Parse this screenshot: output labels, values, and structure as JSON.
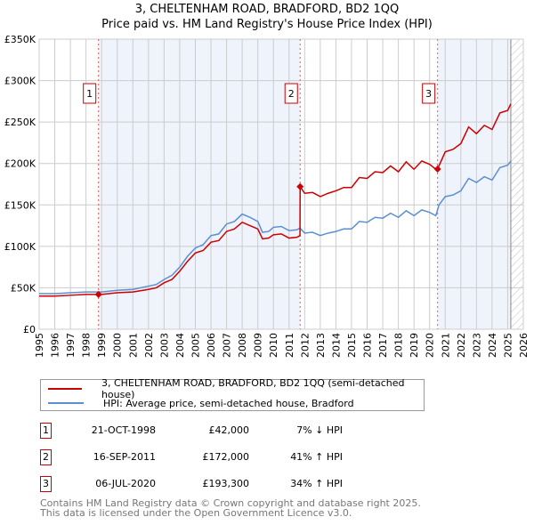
{
  "chart_data": {
    "type": "line",
    "title": "3, CHELTENHAM ROAD, BRADFORD, BD2 1QQ",
    "subtitle": "Price paid vs. HM Land Registry's House Price Index (HPI)",
    "xlim": [
      1995,
      2026
    ],
    "ylim": [
      0,
      350000
    ],
    "x_ticks": [
      "1995",
      "1996",
      "1997",
      "1998",
      "1999",
      "2000",
      "2001",
      "2002",
      "2003",
      "2004",
      "2005",
      "2006",
      "2007",
      "2008",
      "2009",
      "2010",
      "2011",
      "2012",
      "2013",
      "2014",
      "2015",
      "2016",
      "2017",
      "2018",
      "2019",
      "2020",
      "2021",
      "2022",
      "2023",
      "2024",
      "2025",
      "2026"
    ],
    "y_ticks": [
      {
        "v": 0,
        "label": "£0"
      },
      {
        "v": 50000,
        "label": "£50K"
      },
      {
        "v": 100000,
        "label": "£100K"
      },
      {
        "v": 150000,
        "label": "£150K"
      },
      {
        "v": 200000,
        "label": "£200K"
      },
      {
        "v": 250000,
        "label": "£250K"
      },
      {
        "v": 300000,
        "label": "£300K"
      },
      {
        "v": 350000,
        "label": "£350K"
      }
    ],
    "grid": true,
    "shaded_ranges": [
      [
        1998.8,
        2011.71
      ],
      [
        2020.51,
        2025.2
      ]
    ],
    "hatched_from": 2025.2,
    "series": [
      {
        "name": "3, CHELTENHAM ROAD, BRADFORD, BD2 1QQ (semi-detached house)",
        "color": "#cc0000",
        "x": [
          1995,
          1996,
          1997,
          1998,
          1998.8,
          1999,
          2000,
          2001,
          2002,
          2002.5,
          2003,
          2003.5,
          2004,
          2004.5,
          2005,
          2005.5,
          2006,
          2006.5,
          2007,
          2007.5,
          2008,
          2008.5,
          2009,
          2009.3,
          2009.7,
          2010,
          2010.5,
          2011,
          2011.5,
          2011.7,
          2011.71,
          2012,
          2012.5,
          2013,
          2013.5,
          2014,
          2014.5,
          2015,
          2015.5,
          2016,
          2016.5,
          2017,
          2017.5,
          2018,
          2018.5,
          2019,
          2019.5,
          2020,
          2020.4,
          2020.51,
          2021,
          2021.5,
          2022,
          2022.5,
          2023,
          2023.5,
          2024,
          2024.5,
          2025,
          2025.2
        ],
        "y": [
          40000,
          40000,
          41000,
          42000,
          42000,
          42000,
          44000,
          45000,
          48000,
          50000,
          56000,
          60000,
          70000,
          82000,
          92000,
          95000,
          105000,
          107000,
          118000,
          121000,
          129000,
          125000,
          121000,
          109000,
          110000,
          114000,
          115000,
          110000,
          111000,
          113000,
          172000,
          164000,
          165000,
          160000,
          164000,
          167000,
          171000,
          171000,
          183000,
          182000,
          190000,
          189000,
          197000,
          190000,
          202000,
          193000,
          203000,
          199000,
          193000,
          193300,
          214000,
          217000,
          224000,
          244000,
          236000,
          246000,
          241000,
          261000,
          264000,
          272000
        ]
      },
      {
        "name": "HPI: Average price, semi-detached house, Bradford",
        "color": "#5b8fd0",
        "x": [
          1995,
          1996,
          1997,
          1998,
          1998.8,
          1999,
          2000,
          2001,
          2002,
          2002.5,
          2003,
          2003.5,
          2004,
          2004.5,
          2005,
          2005.5,
          2006,
          2006.5,
          2007,
          2007.5,
          2008,
          2008.5,
          2009,
          2009.3,
          2009.7,
          2010,
          2010.5,
          2011,
          2011.5,
          2011.7,
          2012,
          2012.5,
          2013,
          2013.5,
          2014,
          2014.5,
          2015,
          2015.5,
          2016,
          2016.5,
          2017,
          2017.5,
          2018,
          2018.5,
          2019,
          2019.5,
          2020,
          2020.4,
          2020.6,
          2021,
          2021.5,
          2022,
          2022.5,
          2023,
          2023.5,
          2024,
          2024.5,
          2025,
          2025.2
        ],
        "y": [
          43000,
          43000,
          44000,
          45000,
          45000,
          45000,
          47000,
          48000,
          52000,
          54000,
          60000,
          65000,
          75000,
          88000,
          98000,
          102000,
          113000,
          115000,
          127000,
          130000,
          139000,
          135000,
          130000,
          117000,
          118000,
          123000,
          124000,
          119000,
          120000,
          122000,
          116000,
          117000,
          113000,
          116000,
          118000,
          121000,
          121000,
          130000,
          129000,
          135000,
          134000,
          140000,
          135000,
          143000,
          137000,
          144000,
          141000,
          137000,
          150000,
          160000,
          162000,
          167000,
          182000,
          177000,
          184000,
          180000,
          195000,
          198000,
          203000
        ]
      }
    ],
    "sales": [
      {
        "n": "1",
        "x": 1998.8,
        "y": 42000
      },
      {
        "n": "2",
        "x": 2011.71,
        "y": 172000
      },
      {
        "n": "3",
        "x": 2020.51,
        "y": 193300
      }
    ]
  },
  "legend": {
    "property": "3, CHELTENHAM ROAD, BRADFORD, BD2 1QQ (semi-detached house)",
    "hpi": "HPI: Average price, semi-detached house, Bradford"
  },
  "transactions": [
    {
      "n": "1",
      "date": "21-OCT-1998",
      "price": "£42,000",
      "hpi": "7% ↓ HPI"
    },
    {
      "n": "2",
      "date": "16-SEP-2011",
      "price": "£172,000",
      "hpi": "41% ↑ HPI"
    },
    {
      "n": "3",
      "date": "06-JUL-2020",
      "price": "£193,300",
      "hpi": "34% ↑ HPI"
    }
  ],
  "footer": {
    "line1": "Contains HM Land Registry data © Crown copyright and database right 2025.",
    "line2": "This data is licensed under the Open Government Licence v3.0."
  }
}
